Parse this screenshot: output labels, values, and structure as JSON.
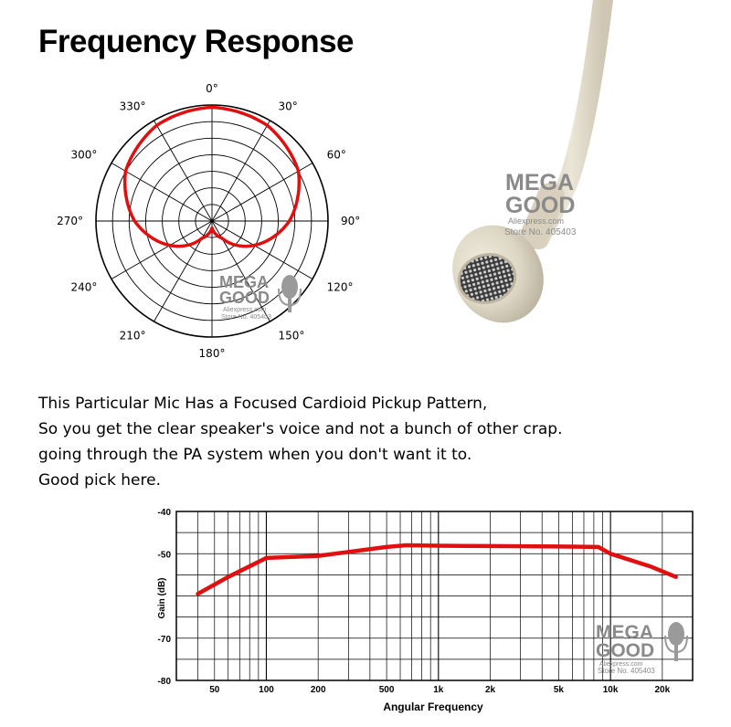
{
  "title": "Frequency Response",
  "description_lines": [
    "This Particular Mic Has a Focused Cardioid Pickup Pattern,",
    "So you get the clear speaker's voice and not a bunch of other crap.",
    "going through the PA system when you don't want it to.",
    "Good pick here."
  ],
  "watermark": {
    "line1": "MEGA",
    "line2": "GOOD",
    "line3": "Aliexpress.com",
    "line4": "Store No. 405403"
  },
  "colors": {
    "curve": "#e01010",
    "grid": "#000000",
    "mic_body": "#ddd6c4",
    "cable": "#e3dccb"
  },
  "chart_data": [
    {
      "type": "polar",
      "angle_labels": [
        "0°",
        "30°",
        "60°",
        "90°",
        "120°",
        "150°",
        "180°",
        "210°",
        "240°",
        "270°",
        "300°",
        "330°"
      ],
      "pattern": "cardioid",
      "series": [
        {
          "angles_deg": [
            0,
            30,
            60,
            90,
            120,
            150,
            180,
            210,
            240,
            270,
            300,
            330
          ],
          "relative_level": [
            1.0,
            0.97,
            0.87,
            0.66,
            0.39,
            0.12,
            0.0,
            0.12,
            0.39,
            0.66,
            0.87,
            0.97
          ]
        }
      ],
      "rings": 7
    },
    {
      "type": "line",
      "x_scale": "log",
      "x_tick_labels": [
        "50",
        "100",
        "200",
        "500",
        "1k",
        "2k",
        "5k",
        "10k",
        "20k"
      ],
      "x_tick_values": [
        50,
        100,
        200,
        500,
        1000,
        2000,
        5000,
        10000,
        20000
      ],
      "y_tick_labels": [
        "-40",
        "-50",
        "-70",
        "-80"
      ],
      "y_tick_values": [
        -40,
        -50,
        -70,
        -80
      ],
      "xlim": [
        30,
        30000
      ],
      "ylim": [
        -80,
        -40
      ],
      "xlabel": "Angular Frequency",
      "ylabel": "Gain (dB)",
      "series": [
        {
          "x": [
            40,
            60,
            100,
            200,
            500,
            650,
            1000,
            2000,
            5000,
            8500,
            10000,
            17000,
            24000
          ],
          "y": [
            -59.5,
            -55.5,
            -51.0,
            -50.5,
            -48.4,
            -48.0,
            -48.1,
            -48.2,
            -48.3,
            -48.4,
            -50.0,
            -53.0,
            -55.5
          ]
        }
      ]
    }
  ]
}
